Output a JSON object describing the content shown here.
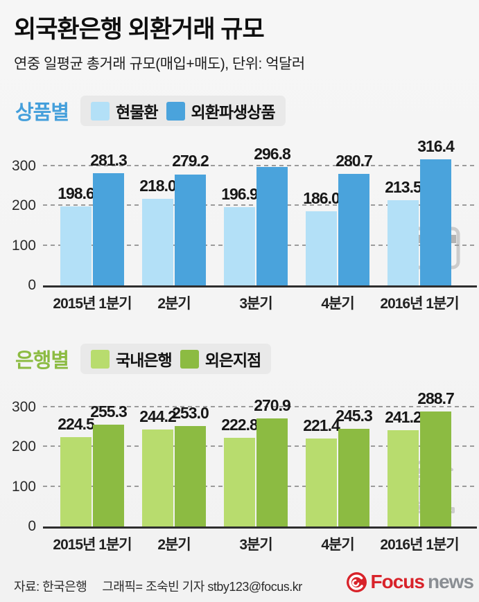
{
  "header": {
    "title": "외국환은행 외환거래 규모",
    "subtitle": "연중 일평균 총거래 규모(매입+매도), 단위: 억달러"
  },
  "chart_data": [
    {
      "type": "bar",
      "section_label": "상품별",
      "section_color": "#449fdb",
      "categories": [
        "2015년 1분기",
        "2분기",
        "3분기",
        "4분기",
        "2016년 1분기"
      ],
      "series": [
        {
          "name": "현물환",
          "color": "#b3e0f7",
          "values": [
            198.6,
            218.0,
            196.9,
            186.0,
            213.5
          ]
        },
        {
          "name": "외환파생상품",
          "color": "#4aa3dc",
          "values": [
            281.3,
            279.2,
            296.8,
            280.7,
            316.4
          ]
        }
      ],
      "yticks": [
        0,
        100,
        200,
        300
      ],
      "ylim": [
        0,
        368
      ],
      "grid": "horizontal-dashed",
      "legend_position": "top-left",
      "value_labels": true,
      "watermark_icon": "credit-card-icon"
    },
    {
      "type": "bar",
      "section_label": "은행별",
      "section_color": "#8cbb42",
      "categories": [
        "2015년 1분기",
        "2분기",
        "3분기",
        "4분기",
        "2016년 1분기"
      ],
      "series": [
        {
          "name": "국내은행",
          "color": "#b8dc6e",
          "values": [
            224.5,
            244.2,
            222.8,
            221.4,
            241.2
          ]
        },
        {
          "name": "외은지점",
          "color": "#8cbb42",
          "values": [
            255.3,
            253.0,
            270.9,
            245.3,
            288.7
          ]
        }
      ],
      "yticks": [
        0,
        100,
        200,
        300
      ],
      "ylim": [
        0,
        368
      ],
      "grid": "horizontal-dashed",
      "legend_position": "top-left",
      "value_labels": true,
      "watermark_icon": "bank-icon"
    }
  ],
  "footer": {
    "source": "자료: 한국은행",
    "credit": "그래픽= 조숙빈 기자 stby123@focus.kr",
    "logo": {
      "brand": "Focus",
      "suffix": "news",
      "brand_color": "#d8232a",
      "suffix_color": "#8a8e93"
    }
  }
}
